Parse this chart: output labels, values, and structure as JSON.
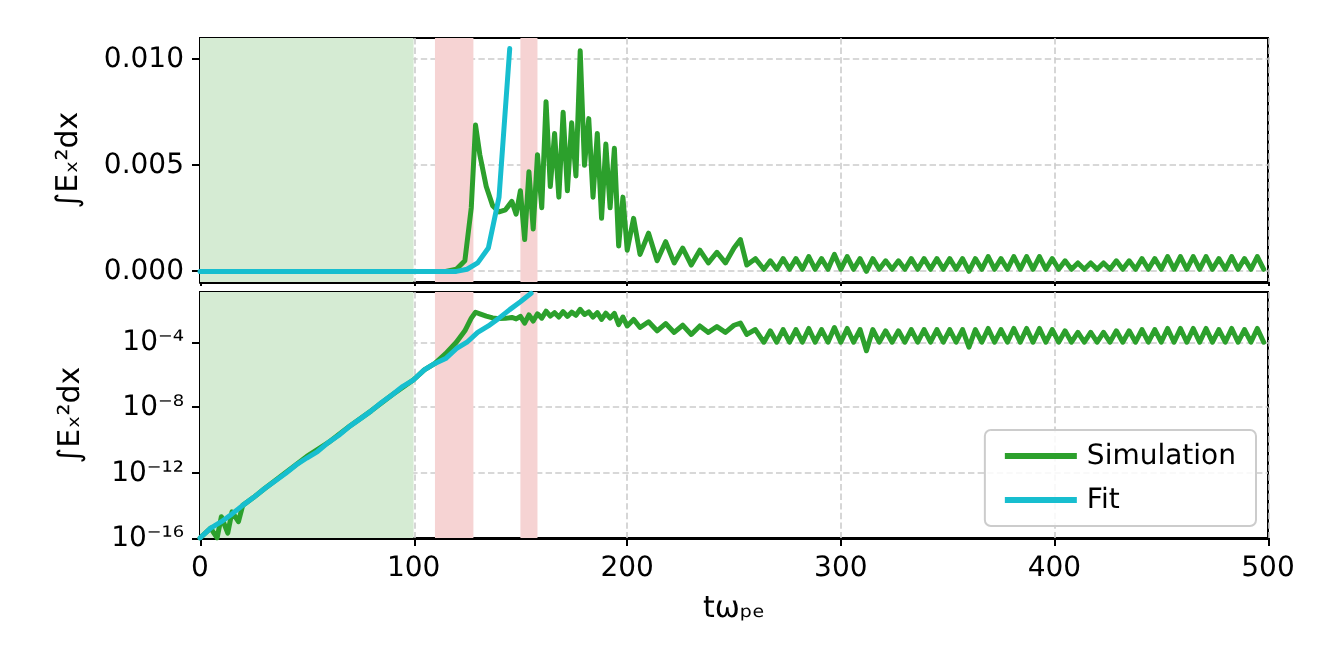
{
  "chart_data": [
    {
      "type": "line",
      "ylabel": "∫Eₓ²dx",
      "xlim": [
        0,
        500
      ],
      "xticks": [
        0,
        100,
        200,
        300,
        400,
        500
      ],
      "ylim": [
        -0.0005,
        0.011
      ],
      "yticks": [
        {
          "value": 0,
          "label": "0.000"
        },
        {
          "value": 0.005,
          "label": "0.005"
        },
        {
          "value": 0.01,
          "label": "0.010"
        }
      ],
      "tick_labels": "y",
      "grid": true,
      "legend": false,
      "marker": "none",
      "line_style": "solid",
      "bands": [
        {
          "axis": "x",
          "from": 0,
          "to": 100,
          "color": "#d5ebd3"
        },
        {
          "axis": "x",
          "from": 110,
          "to": 128,
          "color": "#f6d3d3"
        },
        {
          "axis": "x",
          "from": 150,
          "to": 158,
          "color": "#f6d3d3"
        }
      ],
      "series": [
        {
          "color": "#2ca02c",
          "x": [
            100,
            105,
            110,
            115,
            120,
            124,
            127,
            129,
            131,
            134,
            137,
            140,
            143,
            146,
            148,
            150,
            152,
            154,
            156,
            158,
            160,
            162,
            164,
            166,
            168,
            170,
            172,
            174,
            176,
            178,
            180,
            182,
            184,
            186,
            188,
            190,
            192,
            194,
            196,
            198,
            200,
            203,
            206,
            210,
            214,
            218,
            222,
            226,
            230,
            234,
            238,
            242,
            246,
            250,
            253,
            256,
            260,
            264,
            267,
            270,
            273,
            276,
            279,
            282,
            285,
            288,
            291,
            294,
            297,
            300,
            303,
            306,
            309,
            312,
            315,
            318,
            321,
            324,
            327,
            330,
            333,
            336,
            339,
            342,
            345,
            348,
            351,
            354,
            357,
            360,
            363,
            366,
            369,
            372,
            375,
            378,
            381,
            384,
            387,
            390,
            393,
            396,
            399,
            402,
            405,
            408,
            411,
            414,
            417,
            420,
            423,
            426,
            429,
            432,
            435,
            438,
            441,
            444,
            447,
            450,
            453,
            456,
            459,
            462,
            465,
            468,
            471,
            474,
            477,
            480,
            483,
            486,
            489,
            492,
            495,
            498
          ],
          "values": [
            0,
            0,
            0,
            0,
            0.0001,
            0.0005,
            0.003,
            0.0069,
            0.0055,
            0.004,
            0.0031,
            0.0028,
            0.0029,
            0.0033,
            0.0027,
            0.0038,
            0.0015,
            0.0047,
            0.002,
            0.0055,
            0.003,
            0.008,
            0.004,
            0.0065,
            0.0035,
            0.0075,
            0.0038,
            0.007,
            0.0045,
            0.0104,
            0.005,
            0.0072,
            0.0035,
            0.0065,
            0.0025,
            0.006,
            0.003,
            0.0058,
            0.0012,
            0.0035,
            0.001,
            0.0025,
            0.0008,
            0.0018,
            0.0005,
            0.0014,
            0.0004,
            0.0011,
            0.0003,
            0.001,
            0.0004,
            0.0009,
            0.0004,
            0.0011,
            0.0015,
            0.0003,
            0.0006,
            0.0001,
            0.0005,
            0.0001,
            0.0006,
            0.0001,
            0.0006,
            0.0001,
            0.0007,
            0.0001,
            0.0006,
            0.0001,
            0.0008,
            0.0001,
            0.0007,
            0.0001,
            0.0006,
            0,
            0.0006,
            0.0001,
            0.0005,
            0.0001,
            0.0005,
            0.0001,
            0.0006,
            0.0001,
            0.0006,
            0.0001,
            0.0006,
            0.0001,
            0.0006,
            0.0001,
            0.0006,
            0,
            0.0006,
            0.0001,
            0.0007,
            0.0001,
            0.0006,
            0.0001,
            0.0007,
            0.0001,
            0.0007,
            0.0001,
            0.0007,
            0.0001,
            0.0006,
            0.0001,
            0.0005,
            0.0001,
            0.0004,
            0.0001,
            0.0004,
            0.0001,
            0.0004,
            0.0001,
            0.0005,
            0.0001,
            0.0005,
            0.0001,
            0.0006,
            0.0001,
            0.0006,
            0.0001,
            0.0007,
            0.0001,
            0.0007,
            0.0001,
            0.0007,
            0.0001,
            0.0007,
            0.0001,
            0.0006,
            0.0001,
            0.0007,
            0.0001,
            0.0006,
            0.0001,
            0.0007,
            0.0001
          ]
        },
        {
          "color": "#17becf",
          "x": [
            0,
            100,
            110,
            115,
            120,
            125,
            130,
            135,
            140,
            145
          ],
          "values": [
            0,
            0,
            0,
            0,
            0,
            0.0001,
            0.0004,
            0.0011,
            0.0035,
            0.0105
          ]
        }
      ]
    },
    {
      "type": "line",
      "ylabel": "∫Eₓ²dx",
      "xlabel": "tωₚₑ",
      "xlim": [
        0,
        500
      ],
      "xticks": [
        0,
        100,
        200,
        300,
        400,
        500
      ],
      "ylim": [
        1e-16,
        0.12
      ],
      "yticks": [
        {
          "value": 1e-16,
          "label": "10⁻¹⁶"
        },
        {
          "value": 1e-12,
          "label": "10⁻¹²"
        },
        {
          "value": 1e-08,
          "label": "10⁻⁸"
        },
        {
          "value": 0.0001,
          "label": "10⁻⁴"
        }
      ],
      "log": "y",
      "grid": true,
      "legend": "bottom right",
      "marker": "none",
      "line_style": "solid",
      "bands": [
        {
          "axis": "x",
          "from": 0,
          "to": 100,
          "color": "#d5ebd3"
        },
        {
          "axis": "x",
          "from": 110,
          "to": 128,
          "color": "#f6d3d3"
        },
        {
          "axis": "x",
          "from": 150,
          "to": 158,
          "color": "#f6d3d3"
        }
      ],
      "series": [
        {
          "name": "Simulation",
          "color": "#2ca02c",
          "x": [
            0,
            5,
            8,
            10,
            13,
            15,
            18,
            20,
            25,
            30,
            40,
            50,
            60,
            70,
            80,
            90,
            100,
            105,
            110,
            115,
            120,
            124,
            127,
            129,
            131,
            134,
            137,
            140,
            143,
            146,
            148,
            150,
            152,
            154,
            156,
            158,
            160,
            162,
            164,
            166,
            168,
            170,
            172,
            174,
            176,
            178,
            180,
            182,
            184,
            186,
            188,
            190,
            192,
            194,
            196,
            198,
            200,
            203,
            206,
            210,
            214,
            218,
            222,
            226,
            230,
            234,
            238,
            242,
            246,
            250,
            253,
            256,
            260,
            264,
            267,
            270,
            273,
            276,
            279,
            282,
            285,
            288,
            291,
            294,
            297,
            300,
            303,
            306,
            309,
            312,
            315,
            318,
            321,
            324,
            327,
            330,
            333,
            336,
            339,
            342,
            345,
            348,
            351,
            354,
            357,
            360,
            363,
            366,
            369,
            372,
            375,
            378,
            381,
            384,
            387,
            390,
            393,
            396,
            399,
            402,
            405,
            408,
            411,
            414,
            417,
            420,
            423,
            426,
            429,
            432,
            435,
            438,
            441,
            444,
            447,
            450,
            453,
            456,
            459,
            462,
            465,
            468,
            471,
            474,
            477,
            480,
            483,
            486,
            489,
            492,
            495,
            498
          ],
          "values": [
            1e-16,
            4e-16,
            1e-16,
            2e-15,
            2e-16,
            4e-15,
            1e-15,
            1e-14,
            3e-14,
            1e-13,
            1e-12,
            1e-11,
            7e-11,
            7e-10,
            6e-09,
            6e-08,
            5e-07,
            2e-06,
            5e-06,
            2e-05,
            0.0001,
            0.0005,
            0.003,
            0.0069,
            0.0055,
            0.004,
            0.0031,
            0.0028,
            0.0029,
            0.0033,
            0.0027,
            0.0038,
            0.0015,
            0.0047,
            0.002,
            0.0055,
            0.003,
            0.008,
            0.004,
            0.0065,
            0.0035,
            0.0075,
            0.0038,
            0.007,
            0.0045,
            0.0104,
            0.005,
            0.0072,
            0.0035,
            0.0065,
            0.0025,
            0.006,
            0.003,
            0.0058,
            0.0012,
            0.0035,
            0.001,
            0.0025,
            0.0008,
            0.0018,
            0.0005,
            0.0014,
            0.0004,
            0.0011,
            0.0003,
            0.001,
            0.0004,
            0.0009,
            0.0004,
            0.0011,
            0.0015,
            0.0003,
            0.0006,
            0.0001,
            0.0005,
            0.0001,
            0.0006,
            0.0001,
            0.0006,
            0.0001,
            0.0007,
            0.0001,
            0.0006,
            0.0001,
            0.0008,
            0.0001,
            0.0007,
            0.0001,
            0.0006,
            3e-05,
            0.0006,
            0.0001,
            0.0005,
            0.0001,
            0.0005,
            0.0001,
            0.0006,
            0.0001,
            0.0006,
            0.0001,
            0.0006,
            0.0001,
            0.0006,
            0.0001,
            0.0006,
            5e-05,
            0.0006,
            0.0001,
            0.0007,
            0.0001,
            0.0006,
            0.0001,
            0.0007,
            0.0001,
            0.0007,
            0.0001,
            0.0007,
            0.0001,
            0.0006,
            0.0001,
            0.0005,
            0.0001,
            0.0004,
            0.0001,
            0.0004,
            0.0001,
            0.0004,
            0.0001,
            0.0005,
            0.0001,
            0.0005,
            0.0001,
            0.0006,
            0.0001,
            0.0006,
            0.0001,
            0.0007,
            0.0001,
            0.0007,
            0.0001,
            0.0007,
            0.0001,
            0.0007,
            0.0001,
            0.0006,
            0.0001,
            0.0007,
            0.0001,
            0.0006,
            0.0001,
            0.0007,
            0.0001
          ]
        },
        {
          "name": "Fit",
          "color": "#17becf",
          "x": [
            0,
            5,
            10,
            15,
            20,
            25,
            30,
            35,
            40,
            45,
            50,
            55,
            60,
            65,
            70,
            75,
            80,
            85,
            90,
            95,
            100,
            105,
            110,
            115,
            120,
            125,
            130,
            135,
            140,
            145,
            150,
            155
          ],
          "values": [
            1e-16,
            4e-16,
            1e-15,
            3e-15,
            1e-14,
            3e-14,
            1e-13,
            3e-13,
            9e-13,
            3e-12,
            8e-12,
            2e-11,
            7e-11,
            2e-10,
            7e-10,
            2e-09,
            6e-09,
            2e-08,
            6e-08,
            2e-07,
            5e-07,
            2e-06,
            5e-06,
            1e-05,
            4e-05,
            0.0001,
            0.0004,
            0.001,
            0.003,
            0.01,
            0.03,
            0.1
          ]
        }
      ]
    }
  ]
}
